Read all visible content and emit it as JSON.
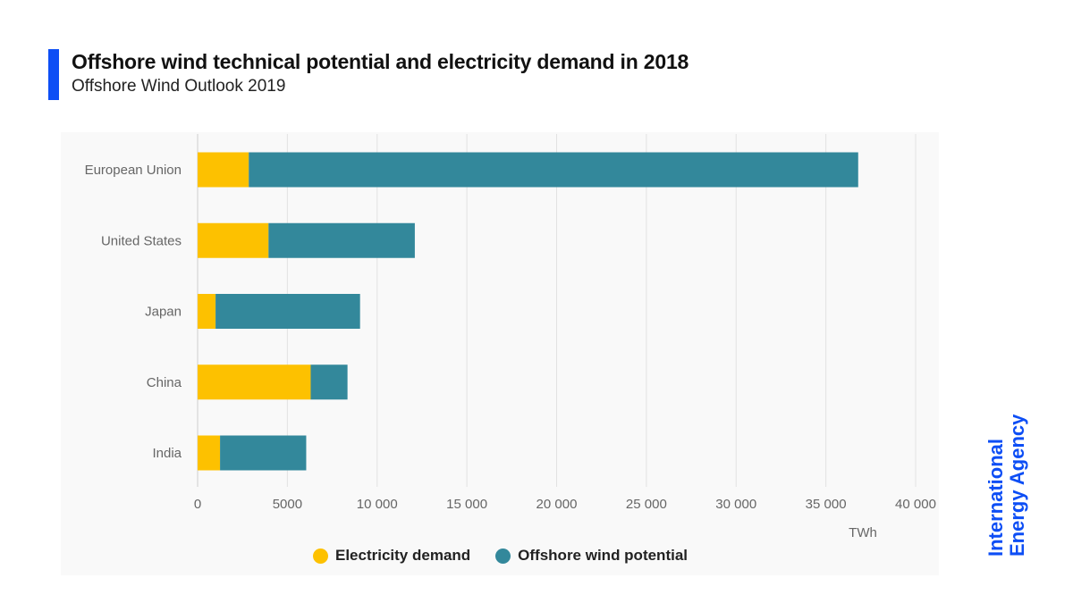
{
  "header": {
    "title": "Offshore wind technical potential and electricity demand in 2018",
    "subtitle": "Offshore Wind Outlook 2019"
  },
  "logo": {
    "line1": "International",
    "line2": "Energy Agency"
  },
  "colors": {
    "accent": "#0d4ef5",
    "demand": "#fdc100",
    "potential": "#33889b",
    "grid": "#e2e2e2",
    "axis_text": "#666666"
  },
  "chart_data": {
    "type": "bar",
    "orientation": "horizontal",
    "stacked": true,
    "categories": [
      "European Union",
      "United States",
      "Japan",
      "China",
      "India"
    ],
    "series": [
      {
        "name": "Electricity demand",
        "values": [
          2850,
          3950,
          1000,
          6300,
          1250
        ]
      },
      {
        "name": "Offshore wind potential",
        "values": [
          33950,
          8150,
          8050,
          2050,
          4800
        ]
      }
    ],
    "xlim": [
      0,
      40000
    ],
    "xticks": [
      0,
      5000,
      10000,
      15000,
      20000,
      25000,
      30000,
      35000,
      40000
    ],
    "xtick_labels": [
      "0",
      "5000",
      "10 000",
      "15 000",
      "20 000",
      "25 000",
      "30 000",
      "35 000",
      "40 000"
    ],
    "xlabel": "TWh",
    "grid": true,
    "legend_position": "bottom"
  }
}
